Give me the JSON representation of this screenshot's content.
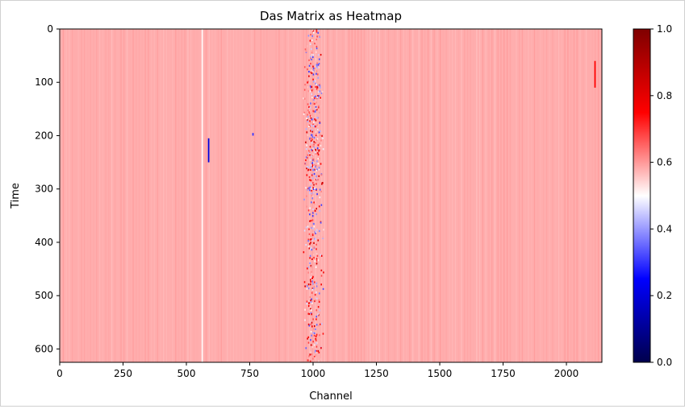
{
  "chart_data": {
    "type": "heatmap",
    "title": "Das Matrix as Heatmap",
    "xlabel": "Channel",
    "ylabel": "Time",
    "xlim": [
      0,
      2140
    ],
    "ylim": [
      625,
      0
    ],
    "x_ticks": [
      0,
      250,
      500,
      750,
      1000,
      1250,
      1500,
      1750,
      2000
    ],
    "y_ticks": [
      0,
      100,
      200,
      300,
      400,
      500,
      600
    ],
    "colorbar": {
      "colormap": "seismic",
      "range": [
        0,
        1
      ],
      "ticks": [
        0.0,
        0.2,
        0.4,
        0.6,
        0.8,
        1.0
      ],
      "tick_labels": [
        "0.0",
        "0.2",
        "0.4",
        "0.6",
        "0.8",
        "1.0"
      ]
    },
    "background_value": 0.58,
    "features": [
      {
        "type": "vertical_band",
        "x_center": 1000,
        "x_width": 60,
        "t_range": [
          0,
          625
        ],
        "value_range": [
          0.3,
          0.85
        ]
      },
      {
        "type": "vertical_line",
        "x": 560,
        "t_range": [
          0,
          625
        ],
        "value": 0.5
      },
      {
        "type": "spot",
        "x": 585,
        "t_range": [
          205,
          250
        ],
        "value": 0.2
      },
      {
        "type": "spot",
        "x": 760,
        "t_range": [
          195,
          200
        ],
        "value": 0.3
      },
      {
        "type": "spot",
        "x": 2110,
        "t_range": [
          60,
          110
        ],
        "value": 0.75
      }
    ],
    "grid": false
  },
  "colors": {
    "background_pink": "#fdd8d8",
    "cold": "#0000ff",
    "hot": "#ff0000"
  }
}
